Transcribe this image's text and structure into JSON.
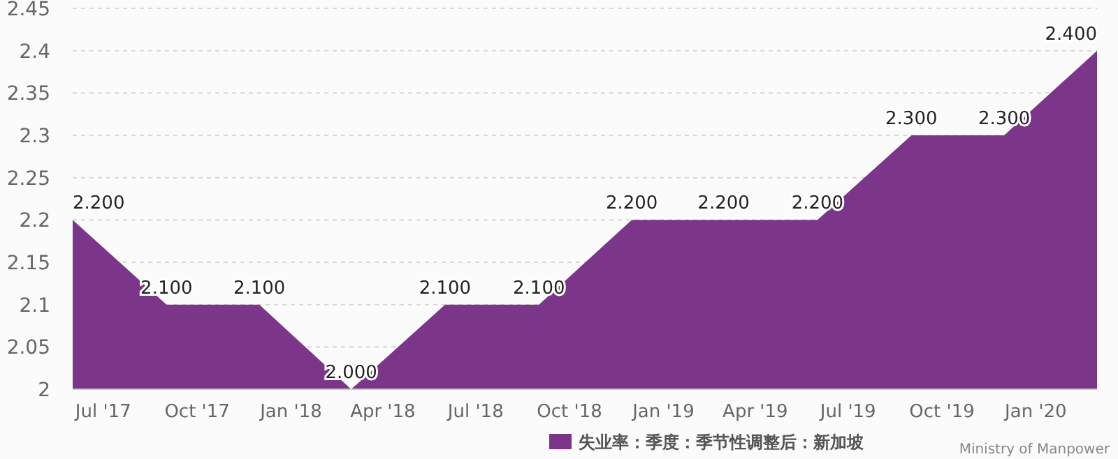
{
  "chart_data": {
    "type": "area",
    "x": [
      "2017-06",
      "2017-09",
      "2017-12",
      "2018-03",
      "2018-06",
      "2018-09",
      "2018-12",
      "2019-03",
      "2019-06",
      "2019-09",
      "2019-12",
      "2020-03"
    ],
    "series": [
      {
        "name": "失业率：季度：季节性调整后：新加坡",
        "color": "#7b3589",
        "values": [
          2.2,
          2.1,
          2.1,
          2.0,
          2.1,
          2.1,
          2.2,
          2.2,
          2.2,
          2.3,
          2.3,
          2.4
        ],
        "value_labels": [
          "2.200",
          "2.100",
          "2.100",
          "2.000",
          "2.100",
          "2.100",
          "2.200",
          "2.200",
          "2.200",
          "2.300",
          "2.300",
          "2.400"
        ]
      }
    ],
    "xlim": [
      "2017-06",
      "2020-03"
    ],
    "xticks": [
      {
        "value": "2017-07",
        "label": "Jul '17"
      },
      {
        "value": "2017-10",
        "label": "Oct '17"
      },
      {
        "value": "2018-01",
        "label": "Jan '18"
      },
      {
        "value": "2018-04",
        "label": "Apr '18"
      },
      {
        "value": "2018-07",
        "label": "Jul '18"
      },
      {
        "value": "2018-10",
        "label": "Oct '18"
      },
      {
        "value": "2019-01",
        "label": "Jan '19"
      },
      {
        "value": "2019-04",
        "label": "Apr '19"
      },
      {
        "value": "2019-07",
        "label": "Jul '19"
      },
      {
        "value": "2019-10",
        "label": "Oct '19"
      },
      {
        "value": "2020-01",
        "label": "Jan '20"
      }
    ],
    "ylim": [
      2,
      2.45
    ],
    "yticks": [
      {
        "value": 2,
        "label": "2"
      },
      {
        "value": 2.05,
        "label": "2.05"
      },
      {
        "value": 2.1,
        "label": "2.1"
      },
      {
        "value": 2.15,
        "label": "2.15"
      },
      {
        "value": 2.2,
        "label": "2.2"
      },
      {
        "value": 2.25,
        "label": "2.25"
      },
      {
        "value": 2.3,
        "label": "2.3"
      },
      {
        "value": 2.35,
        "label": "2.35"
      },
      {
        "value": 2.4,
        "label": "2.4"
      },
      {
        "value": 2.45,
        "label": "2.45"
      }
    ],
    "grid": "y",
    "legend": "bottom",
    "marker": "none",
    "annotations": [
      "Ministry of Manpower"
    ]
  }
}
